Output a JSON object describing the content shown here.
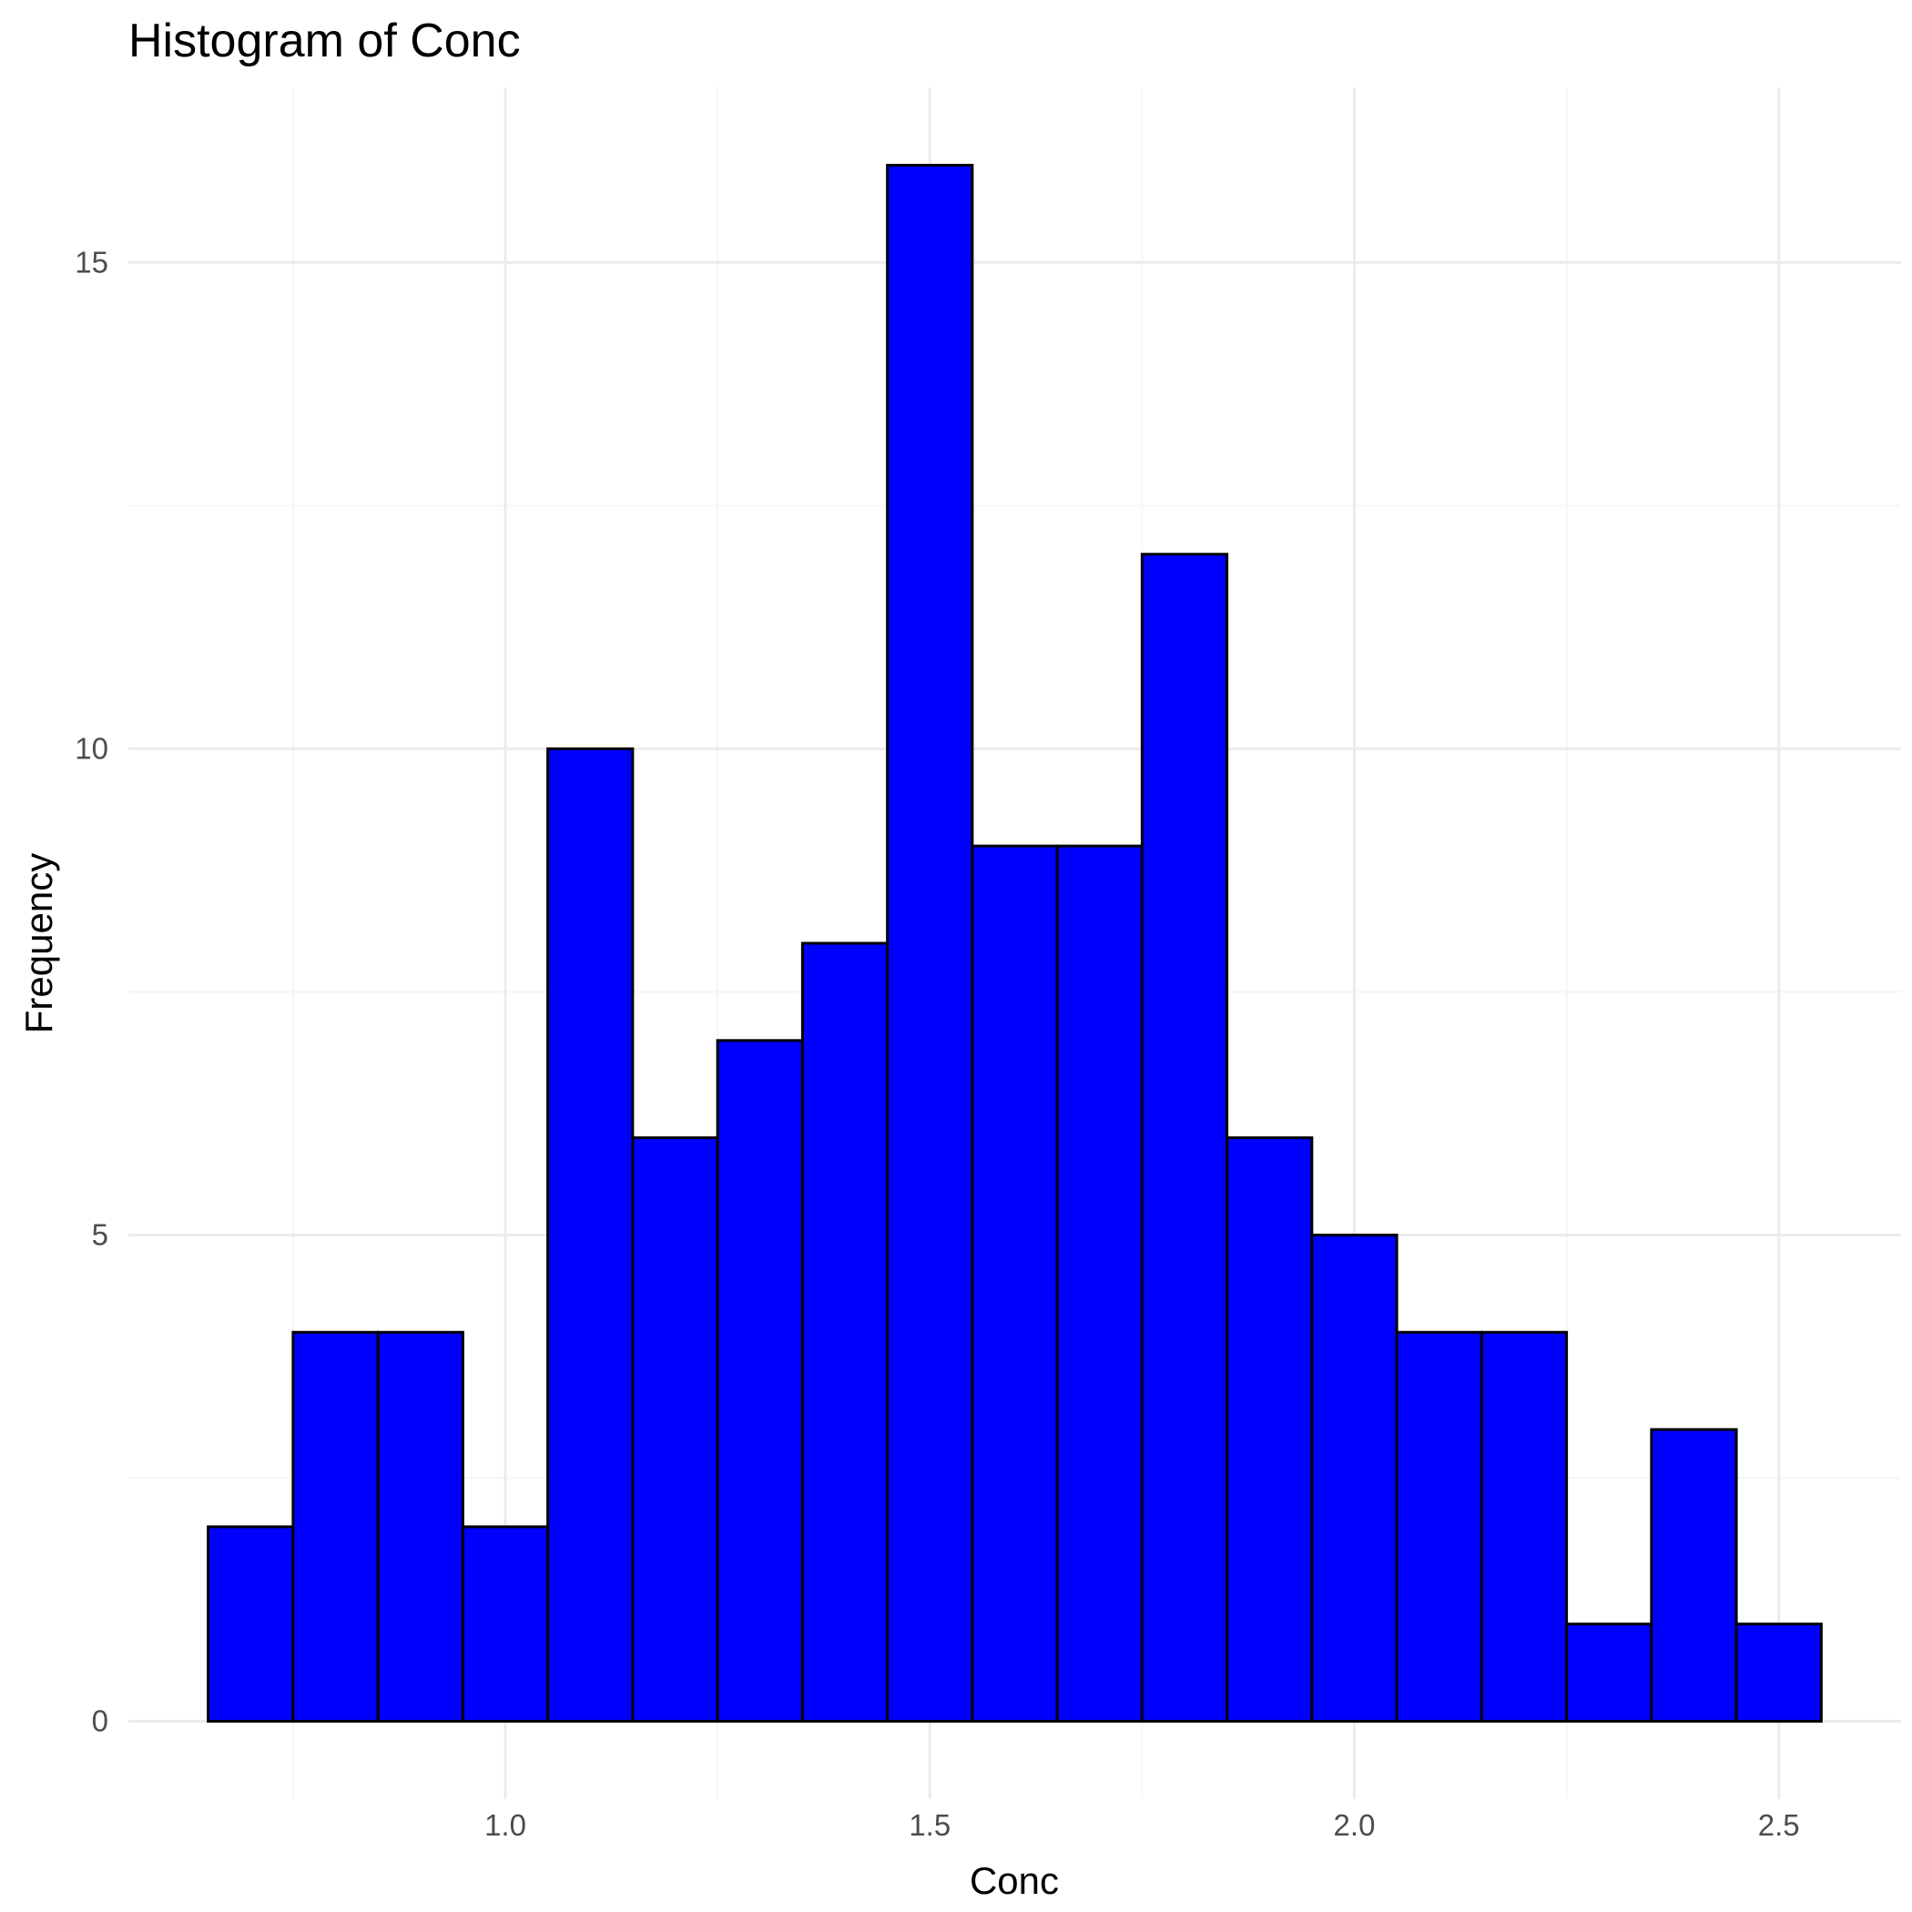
{
  "chart_data": {
    "type": "bar",
    "title": "Histogram of Conc",
    "xlabel": "Conc",
    "ylabel": "Frequency",
    "bin_width": 0.1,
    "bins": [
      {
        "x0": 0.65,
        "x1": 0.75,
        "count": 2
      },
      {
        "x0": 0.75,
        "x1": 0.85,
        "count": 4
      },
      {
        "x0": 0.85,
        "x1": 0.95,
        "count": 4
      },
      {
        "x0": 0.95,
        "x1": 1.05,
        "count": 2
      },
      {
        "x0": 1.05,
        "x1": 1.15,
        "count": 10
      },
      {
        "x0": 1.15,
        "x1": 1.25,
        "count": 6
      },
      {
        "x0": 1.25,
        "x1": 1.35,
        "count": 7
      },
      {
        "x0": 1.35,
        "x1": 1.45,
        "count": 8
      },
      {
        "x0": 1.45,
        "x1": 1.55,
        "count": 16
      },
      {
        "x0": 1.55,
        "x1": 1.65,
        "count": 9
      },
      {
        "x0": 1.65,
        "x1": 1.75,
        "count": 9
      },
      {
        "x0": 1.75,
        "x1": 1.85,
        "count": 12
      },
      {
        "x0": 1.85,
        "x1": 1.95,
        "count": 6
      },
      {
        "x0": 1.95,
        "x1": 2.05,
        "count": 5
      },
      {
        "x0": 2.05,
        "x1": 2.15,
        "count": 4
      },
      {
        "x0": 2.15,
        "x1": 2.25,
        "count": 4
      },
      {
        "x0": 2.25,
        "x1": 2.35,
        "count": 1
      },
      {
        "x0": 2.35,
        "x1": 2.45,
        "count": 3
      },
      {
        "x0": 2.45,
        "x1": 2.55,
        "count": 1
      }
    ],
    "xlim": [
      0.556,
      2.644
    ],
    "ylim": [
      -0.8,
      16.8
    ],
    "x_ticks": [
      {
        "value": 1.0,
        "label": "1.0"
      },
      {
        "value": 1.5,
        "label": "1.5"
      },
      {
        "value": 2.0,
        "label": "2.0"
      },
      {
        "value": 2.5,
        "label": "2.5"
      }
    ],
    "x_minor_grid": [
      0.75,
      1.25,
      1.75,
      2.25
    ],
    "y_ticks": [
      {
        "value": 0,
        "label": "0"
      },
      {
        "value": 5,
        "label": "5"
      },
      {
        "value": 10,
        "label": "10"
      },
      {
        "value": 15,
        "label": "15"
      }
    ],
    "y_minor_grid": [
      2.5,
      7.5,
      12.5
    ],
    "grid": true,
    "legend": "none",
    "colors": {
      "bar_fill": "#0000ff",
      "bar_outline": "#000000",
      "grid_major": "#ebebeb",
      "grid_minor": "#f5f5f5",
      "background": "#ffffff"
    }
  }
}
